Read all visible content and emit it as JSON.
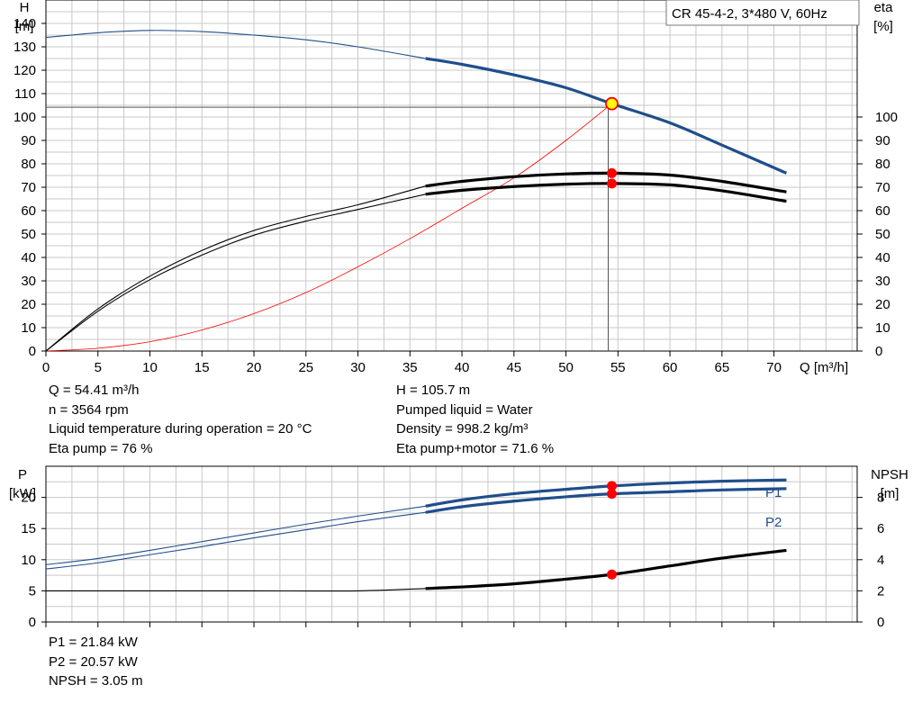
{
  "model_label": "CR 45-4-2, 3*480 V, 60Hz",
  "chart_data": [
    {
      "type": "line",
      "name_hint": "upper",
      "x_axis": {
        "label": "Q [m³/h]",
        "range": [
          0,
          78
        ],
        "ticks": [
          0,
          5,
          10,
          15,
          20,
          25,
          30,
          35,
          40,
          45,
          50,
          55,
          60,
          65,
          70
        ]
      },
      "y_left": {
        "label_line1": "H",
        "label_line2": "[m]",
        "range": [
          0,
          150
        ],
        "ticks": [
          0,
          10,
          20,
          30,
          40,
          50,
          60,
          70,
          80,
          90,
          100,
          110,
          120,
          130,
          140
        ]
      },
      "y_right": {
        "label_line1": "eta",
        "label_line2": "[%]",
        "range": [
          0,
          150
        ],
        "ticks": [
          0,
          10,
          20,
          30,
          40,
          50,
          60,
          70,
          80,
          90,
          100
        ]
      },
      "grid": true,
      "series": [
        {
          "key": "head",
          "axis": "left",
          "color": "#1f4e8c",
          "x": [
            0,
            5,
            10,
            15,
            20,
            25,
            30,
            36.5,
            40,
            45,
            50,
            54.41,
            60,
            65,
            71.2
          ],
          "y": [
            134,
            136,
            137,
            136.5,
            135,
            133,
            130,
            125,
            122.5,
            118,
            112.5,
            105.7,
            97.5,
            88,
            76
          ],
          "dim_before": 36.5
        },
        {
          "key": "eta_pump",
          "axis": "right",
          "color": "#000000",
          "x": [
            0,
            5,
            10,
            15,
            20,
            25,
            30,
            36.5,
            40,
            45,
            50,
            54.41,
            60,
            65,
            71.2
          ],
          "y": [
            0,
            18,
            32,
            43,
            51.5,
            57.5,
            62.5,
            70.5,
            72.5,
            74.5,
            75.7,
            76,
            75.2,
            72.5,
            68
          ],
          "dim_before": 36.5
        },
        {
          "key": "eta_pump_motor",
          "axis": "right",
          "color": "#000000",
          "x": [
            0,
            5,
            10,
            15,
            20,
            25,
            30,
            36.5,
            40,
            45,
            50,
            54.41,
            60,
            65,
            71.2
          ],
          "y": [
            0,
            17,
            30.5,
            41,
            49.5,
            55.5,
            60.5,
            67,
            68.7,
            70.3,
            71.3,
            71.6,
            71,
            68.5,
            64
          ],
          "dim_before": 36.5
        },
        {
          "key": "system_curve",
          "axis": "left",
          "color": "#ff0000",
          "thin": true,
          "x": [
            0,
            5,
            10,
            15,
            20,
            25,
            30,
            35,
            40,
            45,
            50,
            54.41
          ],
          "y": [
            0,
            1.2,
            4,
            9,
            16,
            25,
            36,
            48,
            61,
            74,
            90,
            105.7
          ]
        }
      ],
      "operating_point": {
        "q": 54.41,
        "h": 105.7,
        "eta_pump": 76,
        "eta_pump_motor": 71.6
      }
    },
    {
      "type": "line",
      "name_hint": "lower",
      "x_axis": {
        "range": [
          0,
          78
        ],
        "ticks": [
          0,
          5,
          10,
          15,
          20,
          25,
          30,
          35,
          40,
          45,
          50,
          55,
          60,
          65,
          70
        ]
      },
      "y_left": {
        "label_line1": "P",
        "label_line2": "[kW]",
        "range": [
          0,
          25
        ],
        "ticks": [
          0,
          5,
          10,
          15,
          20
        ]
      },
      "y_right": {
        "label_line1": "NPSH",
        "label_line2": "[m]",
        "range": [
          0,
          10
        ],
        "ticks": [
          0,
          2,
          4,
          6,
          8
        ]
      },
      "grid": true,
      "series": [
        {
          "key": "p1",
          "name": "P1",
          "axis": "left",
          "color": "#1f4e8c",
          "x": [
            0,
            5,
            10,
            15,
            20,
            25,
            30,
            36.5,
            40,
            45,
            50,
            54.41,
            60,
            65,
            71.2
          ],
          "y": [
            9.2,
            10.2,
            11.5,
            12.9,
            14.3,
            15.7,
            17.0,
            18.6,
            19.6,
            20.6,
            21.3,
            21.84,
            22.3,
            22.6,
            22.8
          ],
          "dim_before": 36.5
        },
        {
          "key": "p2",
          "name": "P2",
          "axis": "left",
          "color": "#1f4e8c",
          "x": [
            0,
            5,
            10,
            15,
            20,
            25,
            30,
            36.5,
            40,
            45,
            50,
            54.41,
            60,
            65,
            71.2
          ],
          "y": [
            8.5,
            9.5,
            10.8,
            12.1,
            13.5,
            14.8,
            16.1,
            17.6,
            18.5,
            19.4,
            20.1,
            20.57,
            20.9,
            21.2,
            21.4
          ],
          "dim_before": 36.5
        },
        {
          "key": "npsh",
          "axis": "right",
          "color": "#000000",
          "x": [
            0,
            10,
            20,
            30,
            36.5,
            40,
            45,
            50,
            54.41,
            60,
            65,
            71.2
          ],
          "y": [
            2.0,
            2.0,
            2.0,
            2.0,
            2.15,
            2.25,
            2.45,
            2.75,
            3.05,
            3.6,
            4.1,
            4.6
          ],
          "dim_before": 36.5
        }
      ],
      "operating_point": {
        "q": 54.41,
        "p1": 21.84,
        "p2": 20.57,
        "npsh": 3.05
      }
    }
  ],
  "info_upper_left": [
    "Q = 54.41 m³/h",
    "n = 3564 rpm",
    "Liquid temperature during operation = 20 °C",
    "Eta pump = 76 %"
  ],
  "info_upper_right": [
    "H = 105.7 m",
    "Pumped liquid = Water",
    "Density = 998.2 kg/m³",
    "Eta pump+motor = 71.6 %"
  ],
  "info_lower_left": [
    "P1 = 21.84 kW",
    "P2 = 20.57 kW",
    "NPSH = 3.05 m"
  ],
  "colors": {
    "head": "#1f4e8c",
    "system": "#ff0000",
    "point": "#ff0000",
    "duty": "#ffff00",
    "grid": "#c8c8c8"
  }
}
